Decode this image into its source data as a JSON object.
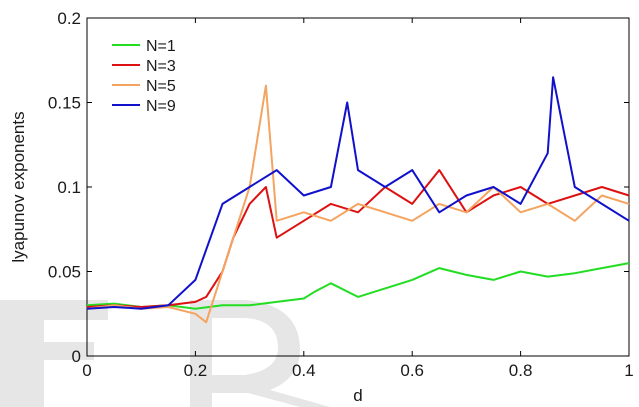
{
  "chart_data": {
    "type": "line",
    "xlabel": "d",
    "ylabel": "lyapunov exponents",
    "xlim": [
      0,
      1
    ],
    "ylim": [
      0,
      0.2
    ],
    "x_ticks": [
      0,
      0.2,
      0.4,
      0.6,
      0.8,
      1
    ],
    "x_tick_labels": [
      "0",
      "0.2",
      "0.4",
      "0.6",
      "0.8",
      "1"
    ],
    "y_ticks": [
      0,
      0.05,
      0.1,
      0.15,
      0.2
    ],
    "y_tick_labels": [
      "0",
      "0.05",
      "0.1",
      "0.15",
      "0.2"
    ],
    "grid": false,
    "legend_position": "top-left",
    "watermark": "FR",
    "series": [
      {
        "name": "N=1",
        "color": "#22dd22",
        "x": [
          0,
          0.05,
          0.1,
          0.15,
          0.2,
          0.25,
          0.3,
          0.35,
          0.4,
          0.42,
          0.45,
          0.5,
          0.55,
          0.6,
          0.65,
          0.7,
          0.75,
          0.8,
          0.85,
          0.9,
          0.95,
          1.0
        ],
        "y": [
          0.03,
          0.031,
          0.029,
          0.03,
          0.028,
          0.03,
          0.03,
          0.032,
          0.034,
          0.038,
          0.043,
          0.035,
          0.04,
          0.045,
          0.052,
          0.048,
          0.045,
          0.05,
          0.047,
          0.049,
          0.052,
          0.055
        ]
      },
      {
        "name": "N=3",
        "color": "#dd1111",
        "x": [
          0,
          0.05,
          0.1,
          0.15,
          0.2,
          0.22,
          0.25,
          0.27,
          0.3,
          0.33,
          0.35,
          0.4,
          0.45,
          0.5,
          0.55,
          0.6,
          0.65,
          0.7,
          0.75,
          0.8,
          0.85,
          0.9,
          0.95,
          1.0
        ],
        "y": [
          0.029,
          0.03,
          0.029,
          0.03,
          0.032,
          0.035,
          0.05,
          0.07,
          0.09,
          0.1,
          0.07,
          0.08,
          0.09,
          0.085,
          0.1,
          0.09,
          0.11,
          0.085,
          0.095,
          0.1,
          0.09,
          0.095,
          0.1,
          0.095
        ]
      },
      {
        "name": "N=5",
        "color": "#f4a460",
        "x": [
          0,
          0.05,
          0.1,
          0.15,
          0.2,
          0.22,
          0.25,
          0.3,
          0.33,
          0.35,
          0.4,
          0.45,
          0.5,
          0.55,
          0.6,
          0.65,
          0.7,
          0.75,
          0.8,
          0.85,
          0.9,
          0.95,
          1.0
        ],
        "y": [
          0.028,
          0.03,
          0.028,
          0.029,
          0.025,
          0.02,
          0.05,
          0.1,
          0.16,
          0.08,
          0.085,
          0.08,
          0.09,
          0.085,
          0.08,
          0.09,
          0.085,
          0.1,
          0.085,
          0.09,
          0.08,
          0.095,
          0.09
        ]
      },
      {
        "name": "N=9",
        "color": "#1111cc",
        "x": [
          0,
          0.05,
          0.1,
          0.15,
          0.2,
          0.25,
          0.3,
          0.35,
          0.4,
          0.45,
          0.48,
          0.5,
          0.55,
          0.6,
          0.65,
          0.7,
          0.75,
          0.8,
          0.85,
          0.86,
          0.9,
          0.95,
          1.0
        ],
        "y": [
          0.028,
          0.029,
          0.028,
          0.03,
          0.045,
          0.09,
          0.1,
          0.11,
          0.095,
          0.1,
          0.15,
          0.11,
          0.1,
          0.11,
          0.085,
          0.095,
          0.1,
          0.09,
          0.12,
          0.165,
          0.1,
          0.09,
          0.08
        ]
      }
    ]
  }
}
